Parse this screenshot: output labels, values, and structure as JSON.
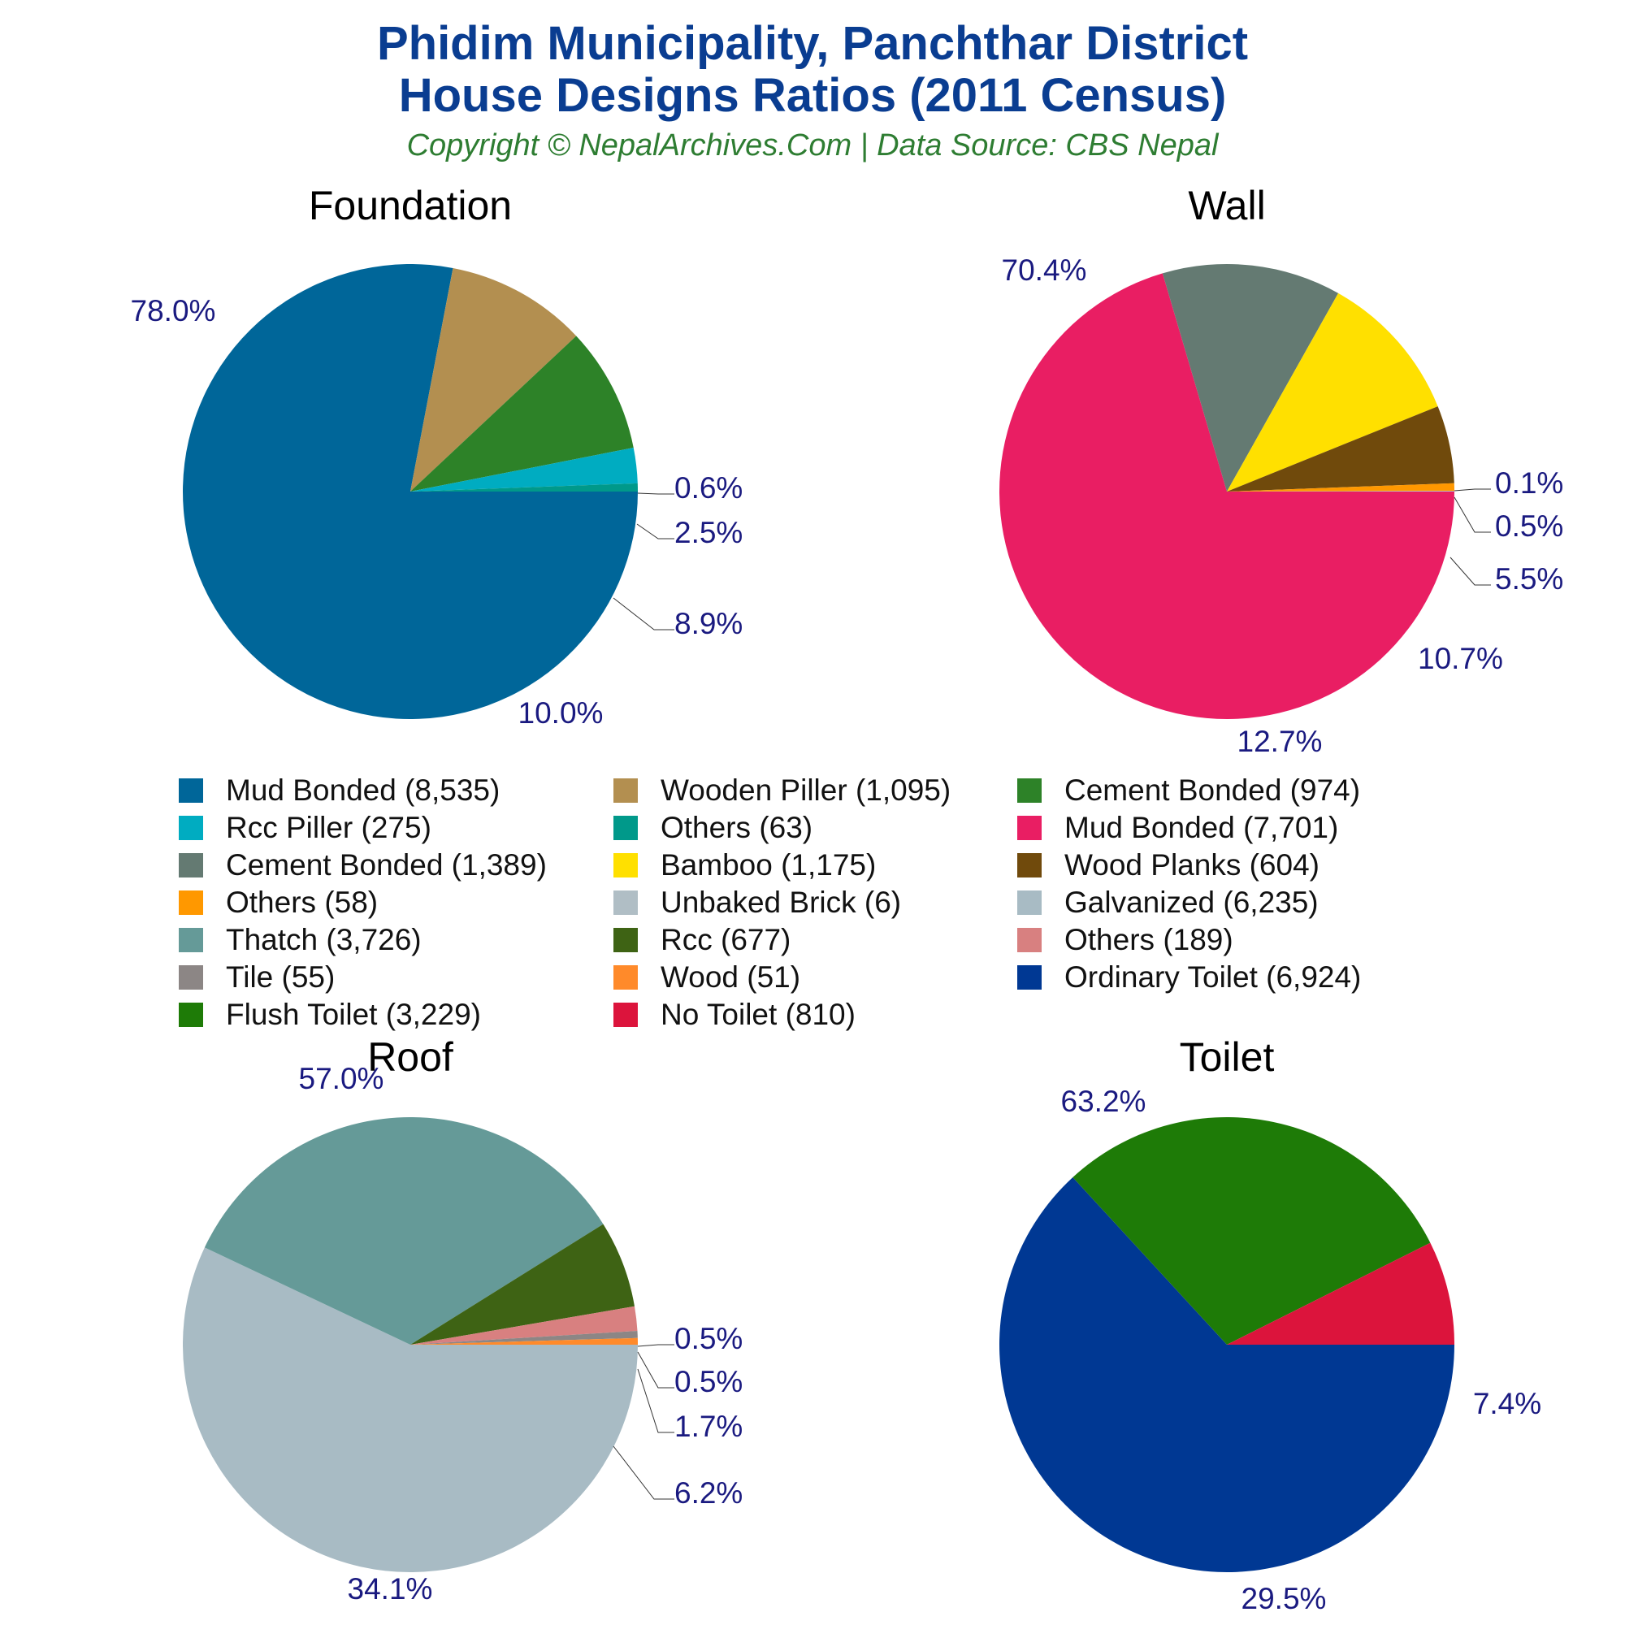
{
  "header": {
    "title_line1": "Phidim Municipality, Panchthar District",
    "title_line2": "House Designs Ratios (2011 Census)",
    "subtitle": "Copyright © NepalArchives.Com | Data Source: CBS Nepal"
  },
  "colors": {
    "title": "#0a3d91",
    "subtitle": "#2e7d32",
    "pct_label": "#1a1a80"
  },
  "chart_data": [
    {
      "type": "pie",
      "title": "Foundation",
      "slices": [
        {
          "label": "Mud Bonded",
          "value": 8535,
          "pct": "78.0%",
          "color": "#006699"
        },
        {
          "label": "Wooden Piller",
          "value": 1095,
          "pct": "10.0%",
          "color": "#b38f50"
        },
        {
          "label": "Cement Bonded",
          "value": 974,
          "pct": "8.9%",
          "color": "#2d8228"
        },
        {
          "label": "Rcc Piller",
          "value": 275,
          "pct": "2.5%",
          "color": "#00acc1"
        },
        {
          "label": "Others",
          "value": 63,
          "pct": "0.6%",
          "color": "#00998a"
        }
      ]
    },
    {
      "type": "pie",
      "title": "Wall",
      "slices": [
        {
          "label": "Mud Bonded",
          "value": 7701,
          "pct": "70.4%",
          "color": "#e91e63"
        },
        {
          "label": "Cement Bonded",
          "value": 1389,
          "pct": "12.7%",
          "color": "#647a72"
        },
        {
          "label": "Bamboo",
          "value": 1175,
          "pct": "10.7%",
          "color": "#ffe000"
        },
        {
          "label": "Wood Planks",
          "value": 604,
          "pct": "5.5%",
          "color": "#704a0c"
        },
        {
          "label": "Others",
          "value": 58,
          "pct": "0.5%",
          "color": "#ff9800"
        },
        {
          "label": "Unbaked Brick",
          "value": 6,
          "pct": "0.1%",
          "color": "#b0bec5"
        }
      ]
    },
    {
      "type": "pie",
      "title": "Roof",
      "slices": [
        {
          "label": "Galvanized",
          "value": 6235,
          "pct": "57.0%",
          "color": "#a8bbc4"
        },
        {
          "label": "Thatch",
          "value": 3726,
          "pct": "34.1%",
          "color": "#659a98"
        },
        {
          "label": "Rcc",
          "value": 677,
          "pct": "6.2%",
          "color": "#3e6314"
        },
        {
          "label": "Others",
          "value": 189,
          "pct": "1.7%",
          "color": "#d88080"
        },
        {
          "label": "Tile",
          "value": 55,
          "pct": "0.5%",
          "color": "#8c8685"
        },
        {
          "label": "Wood",
          "value": 51,
          "pct": "0.5%",
          "color": "#ff8a2a"
        }
      ]
    },
    {
      "type": "pie",
      "title": "Toilet",
      "slices": [
        {
          "label": "Ordinary Toilet",
          "value": 6924,
          "pct": "63.2%",
          "color": "#003893"
        },
        {
          "label": "Flush Toilet",
          "value": 3229,
          "pct": "29.5%",
          "color": "#1e7b07"
        },
        {
          "label": "No Toilet",
          "value": 810,
          "pct": "7.4%",
          "color": "#dc143c"
        }
      ]
    }
  ],
  "legend": [
    {
      "text": "Mud Bonded (8,535)",
      "color": "#006699"
    },
    {
      "text": "Wooden Piller (1,095)",
      "color": "#b38f50"
    },
    {
      "text": "Cement Bonded (974)",
      "color": "#2d8228"
    },
    {
      "text": "Rcc Piller (275)",
      "color": "#00acc1"
    },
    {
      "text": "Others (63)",
      "color": "#00998a"
    },
    {
      "text": "Mud Bonded (7,701)",
      "color": "#e91e63"
    },
    {
      "text": "Cement Bonded (1,389)",
      "color": "#647a72"
    },
    {
      "text": "Bamboo (1,175)",
      "color": "#ffe000"
    },
    {
      "text": "Wood Planks (604)",
      "color": "#704a0c"
    },
    {
      "text": "Others (58)",
      "color": "#ff9800"
    },
    {
      "text": "Unbaked Brick (6)",
      "color": "#b0bec5"
    },
    {
      "text": "Galvanized (6,235)",
      "color": "#a8bbc4"
    },
    {
      "text": "Thatch (3,726)",
      "color": "#659a98"
    },
    {
      "text": "Rcc (677)",
      "color": "#3e6314"
    },
    {
      "text": "Others (189)",
      "color": "#d88080"
    },
    {
      "text": "Tile (55)",
      "color": "#8c8685"
    },
    {
      "text": "Wood (51)",
      "color": "#ff8a2a"
    },
    {
      "text": "Ordinary Toilet (6,924)",
      "color": "#003893"
    },
    {
      "text": "Flush Toilet (3,229)",
      "color": "#1e7b07"
    },
    {
      "text": "No Toilet (810)",
      "color": "#dc143c"
    }
  ]
}
